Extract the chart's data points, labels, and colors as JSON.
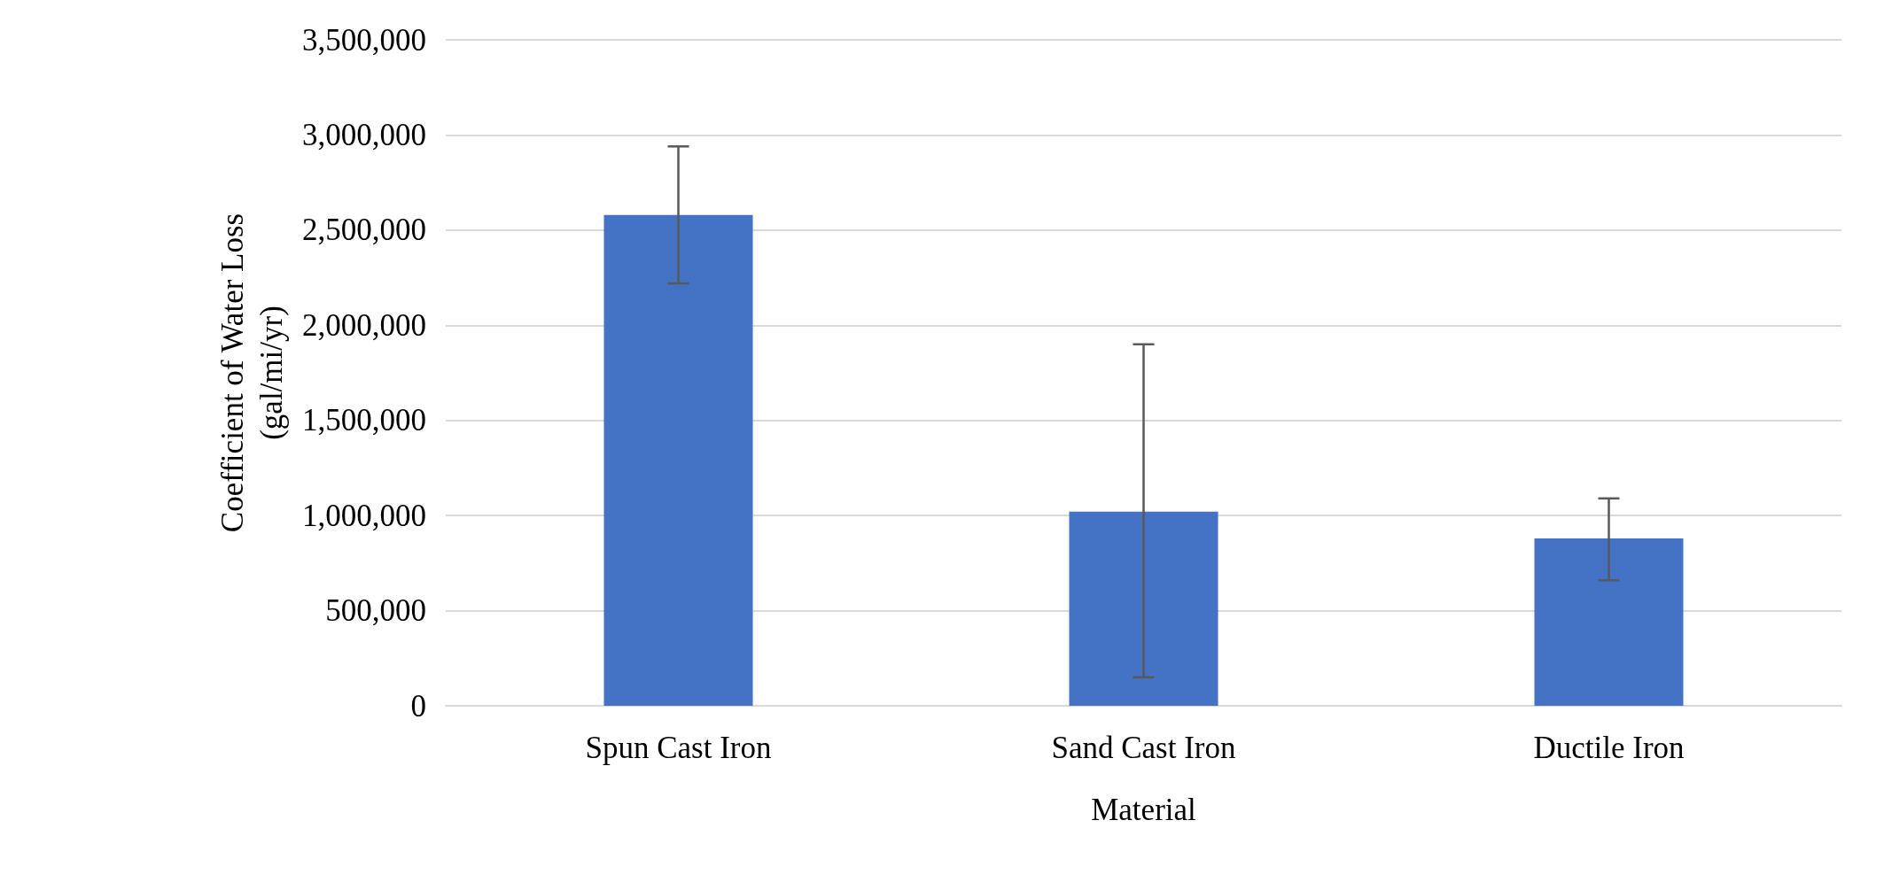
{
  "chart_data": {
    "type": "bar",
    "xlabel": "Material",
    "ylabel": "Coefficient of Water Loss\n(gal/mi/yr)",
    "categories": [
      "Spun Cast Iron",
      "Sand Cast Iron",
      "Ductile Iron"
    ],
    "values": [
      2580000,
      1020000,
      880000
    ],
    "errors": [
      [
        2220000,
        2940000
      ],
      [
        150000,
        1900000
      ],
      [
        660000,
        1090000
      ]
    ],
    "color": "#4472c4",
    "ylim": [
      0,
      3500000
    ],
    "yticks": [
      0,
      {
        "value": 500000,
        "label": "500,000"
      },
      {
        "value": 1000000,
        "label": "1,000,000"
      },
      {
        "value": 1500000,
        "label": "1,500,000"
      },
      {
        "value": 2000000,
        "label": "2,000,000"
      },
      {
        "value": 2500000,
        "label": "2,500,000"
      },
      {
        "value": 3000000,
        "label": "3,000,000"
      },
      {
        "value": 3500000,
        "label": "3,500,000"
      }
    ],
    "grid": "y"
  }
}
